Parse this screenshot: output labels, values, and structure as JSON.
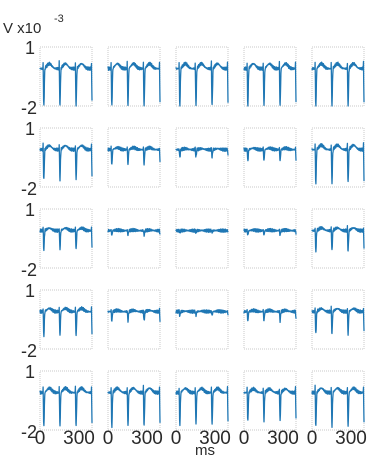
{
  "chart_data": {
    "type": "line",
    "grid": {
      "rows": 5,
      "cols": 5
    },
    "y_axis_title": "V x10",
    "y_axis_exponent": "-3",
    "xlabel": "ms",
    "ylim": [
      -2,
      1
    ],
    "xlim": [
      0,
      400
    ],
    "ytick_labels": [
      "1",
      "-2"
    ],
    "xtick_labels": [
      "0",
      "300"
    ],
    "line_color": "#1f77b4",
    "amplitude_levels": [
      [
        1.0,
        1.0,
        1.0,
        1.0,
        1.0
      ],
      [
        0.8,
        0.4,
        0.2,
        0.3,
        0.9
      ],
      [
        0.5,
        0.12,
        0.04,
        0.12,
        0.55
      ],
      [
        0.65,
        0.25,
        0.1,
        0.25,
        0.6
      ],
      [
        0.9,
        0.9,
        0.85,
        0.75,
        0.9
      ]
    ]
  }
}
